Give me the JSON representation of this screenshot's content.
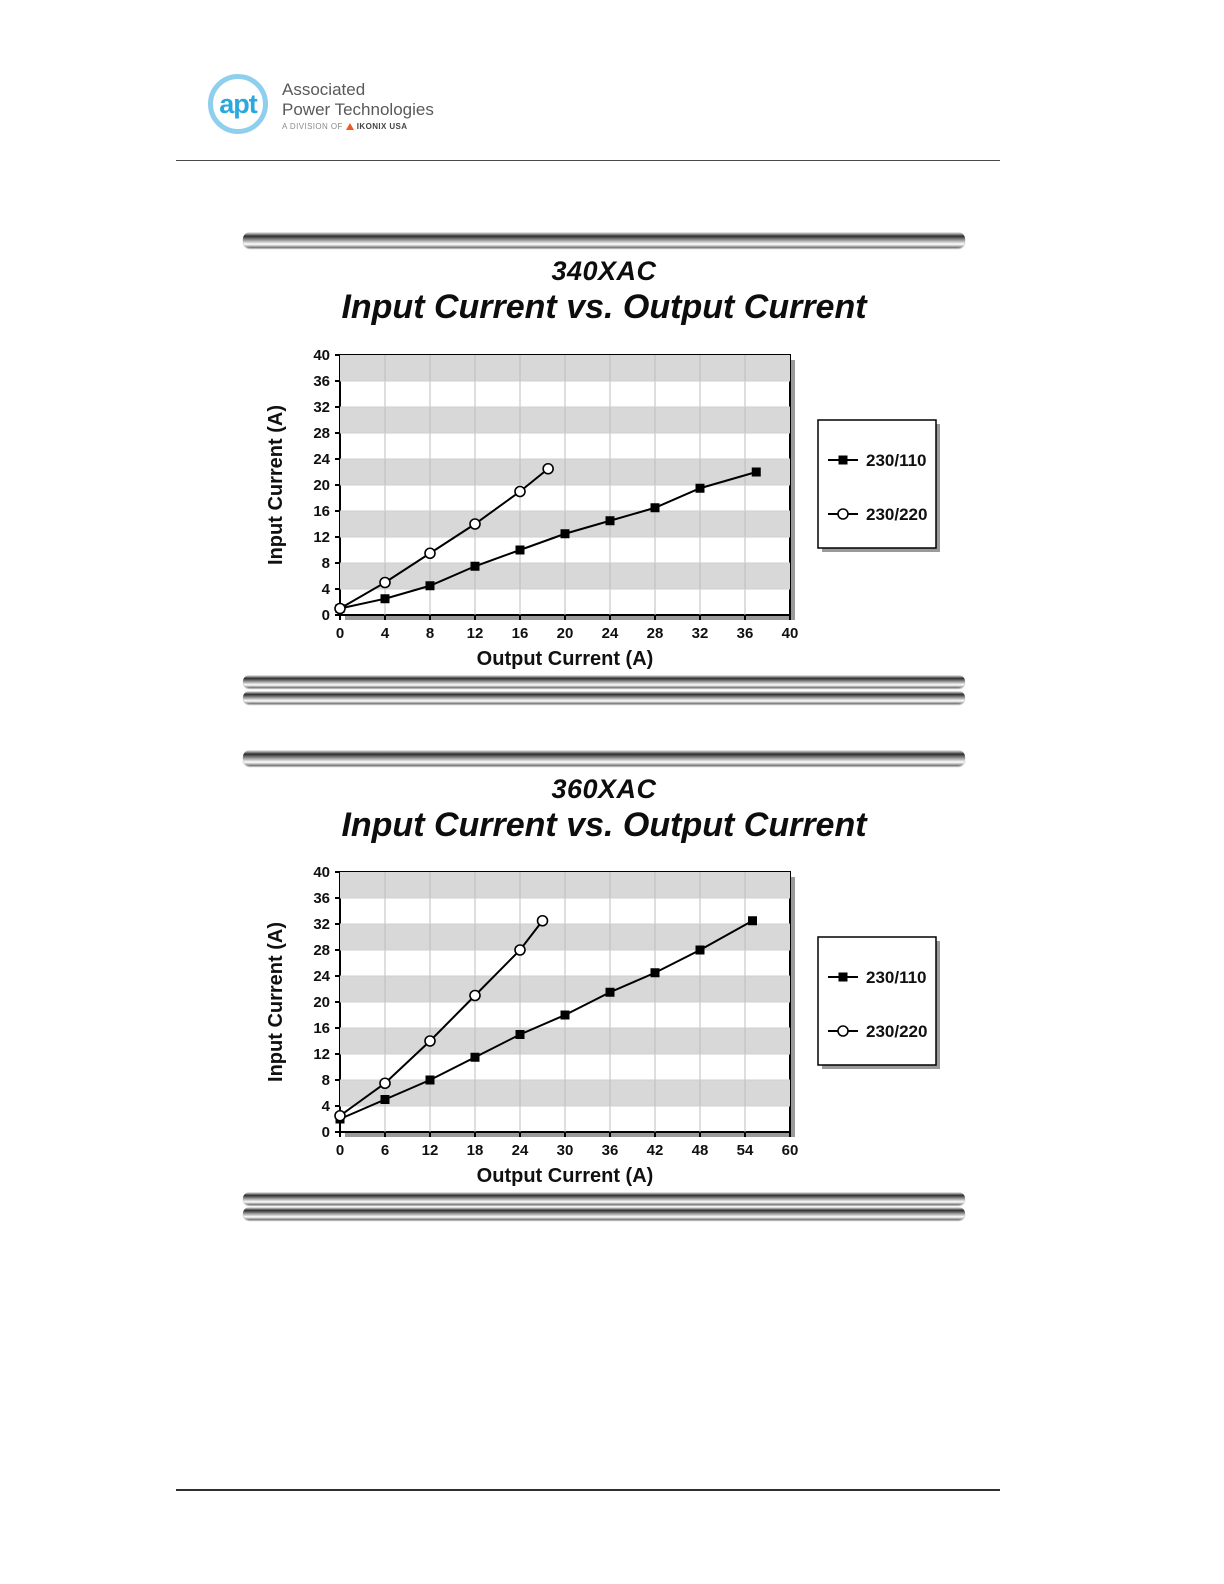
{
  "header": {
    "logo_text": "apt",
    "company_line1": "Associated",
    "company_line2": "Power Technologies",
    "division_prefix": "A DIVISION OF",
    "division_brand": "IKONIX USA"
  },
  "colors": {
    "logo_blue": "#2ba8dd",
    "logo_ring": "#8ecfed",
    "ikonix_orange": "#f05a22",
    "stripe_gray": "#d8d8d8",
    "grid_gray": "#bdbdbd"
  },
  "chart_data": [
    {
      "type": "line",
      "title": "340XAC",
      "subtitle": "Input Current vs. Output Current",
      "xlabel": "Output Current (A)",
      "ylabel": "Input Current (A)",
      "xlim": [
        0,
        40
      ],
      "ylim": [
        0,
        40
      ],
      "xticks": [
        0,
        4,
        8,
        12,
        16,
        20,
        24,
        28,
        32,
        36,
        40
      ],
      "yticks": [
        0,
        4,
        8,
        12,
        16,
        20,
        24,
        28,
        32,
        36,
        40
      ],
      "grid": true,
      "legend_position": "right",
      "series": [
        {
          "name": "230/110",
          "marker": "square",
          "x": [
            0,
            4,
            8,
            12,
            16,
            20,
            24,
            28,
            32,
            37
          ],
          "y": [
            1,
            2.5,
            4.5,
            7.5,
            10,
            12.5,
            14.5,
            16.5,
            19.5,
            22
          ]
        },
        {
          "name": "230/220",
          "marker": "circle",
          "x": [
            0,
            4,
            8,
            12,
            16,
            18.5
          ],
          "y": [
            1,
            5,
            9.5,
            14,
            19,
            22.5
          ]
        }
      ]
    },
    {
      "type": "line",
      "title": "360XAC",
      "subtitle": "Input Current vs. Output Current",
      "xlabel": "Output Current (A)",
      "ylabel": "Input Current (A)",
      "xlim": [
        0,
        60
      ],
      "ylim": [
        0,
        40
      ],
      "xticks": [
        0,
        6,
        12,
        18,
        24,
        30,
        36,
        42,
        48,
        54,
        60
      ],
      "yticks": [
        0,
        4,
        8,
        12,
        16,
        20,
        24,
        28,
        32,
        36,
        40
      ],
      "grid": true,
      "legend_position": "right",
      "series": [
        {
          "name": "230/110",
          "marker": "square",
          "x": [
            0,
            6,
            12,
            18,
            24,
            30,
            36,
            42,
            48,
            55
          ],
          "y": [
            2,
            5,
            8,
            11.5,
            15,
            18,
            21.5,
            24.5,
            28,
            32.5
          ]
        },
        {
          "name": "230/220",
          "marker": "circle",
          "x": [
            0,
            6,
            12,
            18,
            24,
            27
          ],
          "y": [
            2.5,
            7.5,
            14,
            21,
            28,
            32.5
          ]
        }
      ]
    }
  ]
}
